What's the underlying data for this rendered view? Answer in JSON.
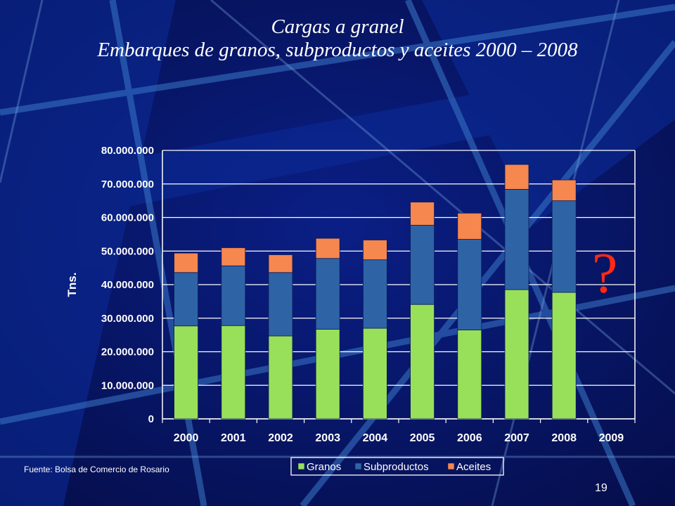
{
  "slide": {
    "title_line1": "Cargas a granel",
    "title_line2": "Embarques de granos, subproductos y aceites 2000 – 2008",
    "source": "Fuente: Bolsa de Comercio de Rosario",
    "page_number": "19",
    "annotation": "?"
  },
  "colors": {
    "background": "#07135a",
    "granos": "#99e05a",
    "subproductos": "#2e64a6",
    "aceites": "#f6874e",
    "question_mark": "#ff2a14"
  },
  "chart_data": {
    "type": "bar",
    "stacked": true,
    "title": "",
    "xlabel": "",
    "ylabel": "Tns.",
    "ylim": [
      0,
      80000000
    ],
    "yticks": [
      0,
      10000000,
      20000000,
      30000000,
      40000000,
      50000000,
      60000000,
      70000000,
      80000000
    ],
    "ytick_labels": [
      "0",
      "10.000.000",
      "20.000.000",
      "30.000.000",
      "40.000.000",
      "50.000.000",
      "60.000.000",
      "70.000.000",
      "80.000.000"
    ],
    "categories": [
      "2000",
      "2001",
      "2002",
      "2003",
      "2004",
      "2005",
      "2006",
      "2007",
      "2008",
      "2009"
    ],
    "series": [
      {
        "name": "Granos",
        "color": "#99e05a",
        "values": [
          27700000,
          27800000,
          24700000,
          26700000,
          27000000,
          34100000,
          26500000,
          38500000,
          37700000,
          null
        ]
      },
      {
        "name": "Subproductos",
        "color": "#2e64a6",
        "values": [
          15900000,
          17800000,
          18900000,
          21100000,
          20400000,
          23600000,
          27000000,
          29900000,
          27300000,
          null
        ]
      },
      {
        "name": "Aceites",
        "color": "#f6874e",
        "values": [
          5800000,
          5400000,
          5300000,
          6000000,
          5900000,
          6900000,
          7800000,
          7400000,
          6200000,
          null
        ]
      }
    ],
    "legend_position": "bottom",
    "grid": true
  }
}
